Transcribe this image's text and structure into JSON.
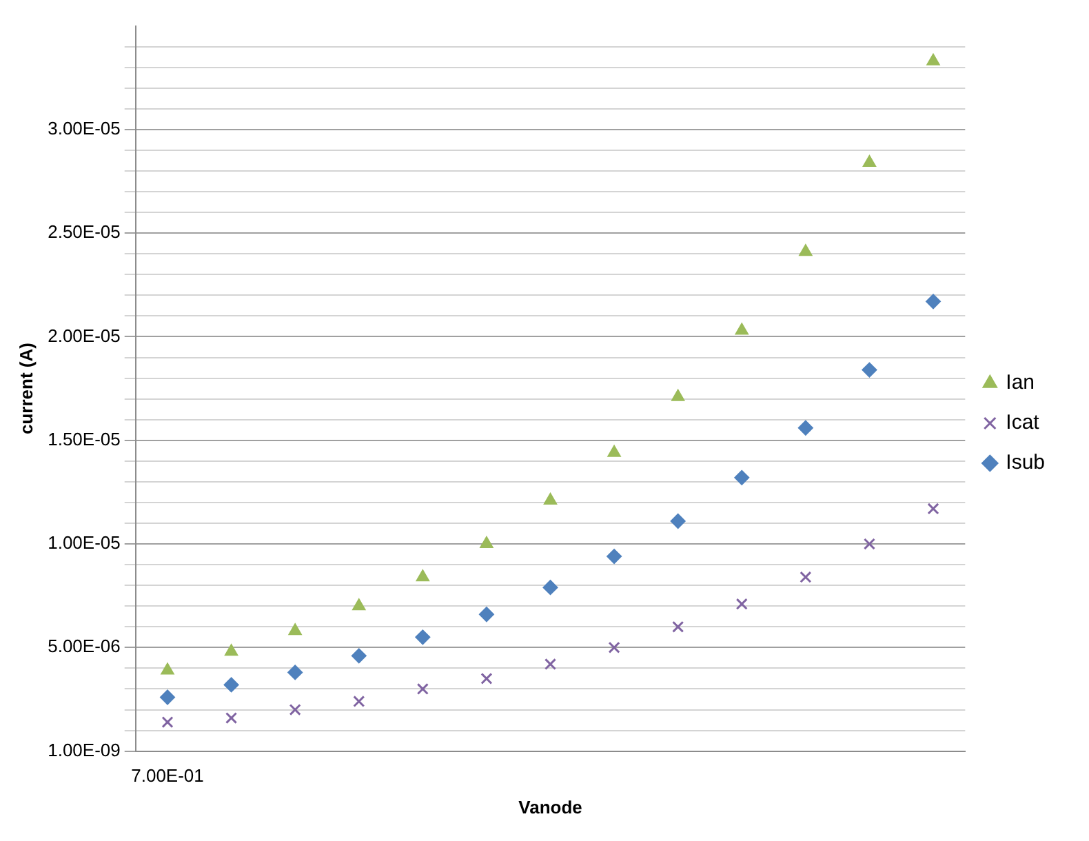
{
  "chart_data": {
    "type": "scatter",
    "xlabel": "Vanode",
    "ylabel": "current (A)",
    "categories": [
      "7.00E-01",
      null,
      null,
      null,
      null,
      null,
      null,
      null,
      null,
      null,
      null,
      null,
      null
    ],
    "series": [
      {
        "name": "Ian",
        "color": "#9bbb59",
        "marker": "triangle",
        "values": [
          3.9e-06,
          4.8e-06,
          5.8e-06,
          7e-06,
          8.4e-06,
          1e-05,
          1.21e-05,
          1.44e-05,
          1.71e-05,
          2.03e-05,
          2.41e-05,
          2.84e-05,
          3.33e-05
        ]
      },
      {
        "name": "Icat",
        "color": "#8064a2",
        "marker": "cross",
        "values": [
          1.4e-06,
          1.6e-06,
          2e-06,
          2.4e-06,
          3e-06,
          3.5e-06,
          4.2e-06,
          5e-06,
          6e-06,
          7.1e-06,
          8.4e-06,
          1e-05,
          1.17e-05
        ]
      },
      {
        "name": "Isub",
        "color": "#4f81bd",
        "marker": "diamond",
        "values": [
          2.6e-06,
          3.2e-06,
          3.8e-06,
          4.6e-06,
          5.5e-06,
          6.6e-06,
          7.9e-06,
          9.4e-06,
          1.11e-05,
          1.32e-05,
          1.56e-05,
          1.84e-05,
          2.17e-05
        ]
      }
    ],
    "ylim": [
      1e-09,
      3.5e-05
    ],
    "yticks": [
      {
        "value": 1e-09,
        "label": "1.00E-09"
      },
      {
        "value": 1e-06,
        "label": null
      },
      {
        "value": 2e-06,
        "label": null
      },
      {
        "value": 3e-06,
        "label": null
      },
      {
        "value": 4e-06,
        "label": null
      },
      {
        "value": 5e-06,
        "label": "5.00E-06"
      },
      {
        "value": 6e-06,
        "label": null
      },
      {
        "value": 7e-06,
        "label": null
      },
      {
        "value": 8e-06,
        "label": null
      },
      {
        "value": 9e-06,
        "label": null
      },
      {
        "value": 1e-05,
        "label": "1.00E-05"
      },
      {
        "value": 1.1e-05,
        "label": null
      },
      {
        "value": 1.2e-05,
        "label": null
      },
      {
        "value": 1.3e-05,
        "label": null
      },
      {
        "value": 1.4e-05,
        "label": null
      },
      {
        "value": 1.5e-05,
        "label": "1.50E-05"
      },
      {
        "value": 1.6e-05,
        "label": null
      },
      {
        "value": 1.7e-05,
        "label": null
      },
      {
        "value": 1.8e-05,
        "label": null
      },
      {
        "value": 1.9e-05,
        "label": null
      },
      {
        "value": 2e-05,
        "label": "2.00E-05"
      },
      {
        "value": 2.1e-05,
        "label": null
      },
      {
        "value": 2.2e-05,
        "label": null
      },
      {
        "value": 2.3e-05,
        "label": null
      },
      {
        "value": 2.4e-05,
        "label": null
      },
      {
        "value": 2.5e-05,
        "label": "2.50E-05"
      },
      {
        "value": 2.6e-05,
        "label": null
      },
      {
        "value": 2.7e-05,
        "label": null
      },
      {
        "value": 2.8e-05,
        "label": null
      },
      {
        "value": 2.9e-05,
        "label": null
      },
      {
        "value": 3e-05,
        "label": "3.00E-05"
      },
      {
        "value": 3.1e-05,
        "label": null
      },
      {
        "value": 3.2e-05,
        "label": null
      },
      {
        "value": 3.3e-05,
        "label": null
      },
      {
        "value": 3.4e-05,
        "label": null
      }
    ],
    "grid": "y",
    "legend": "right"
  }
}
